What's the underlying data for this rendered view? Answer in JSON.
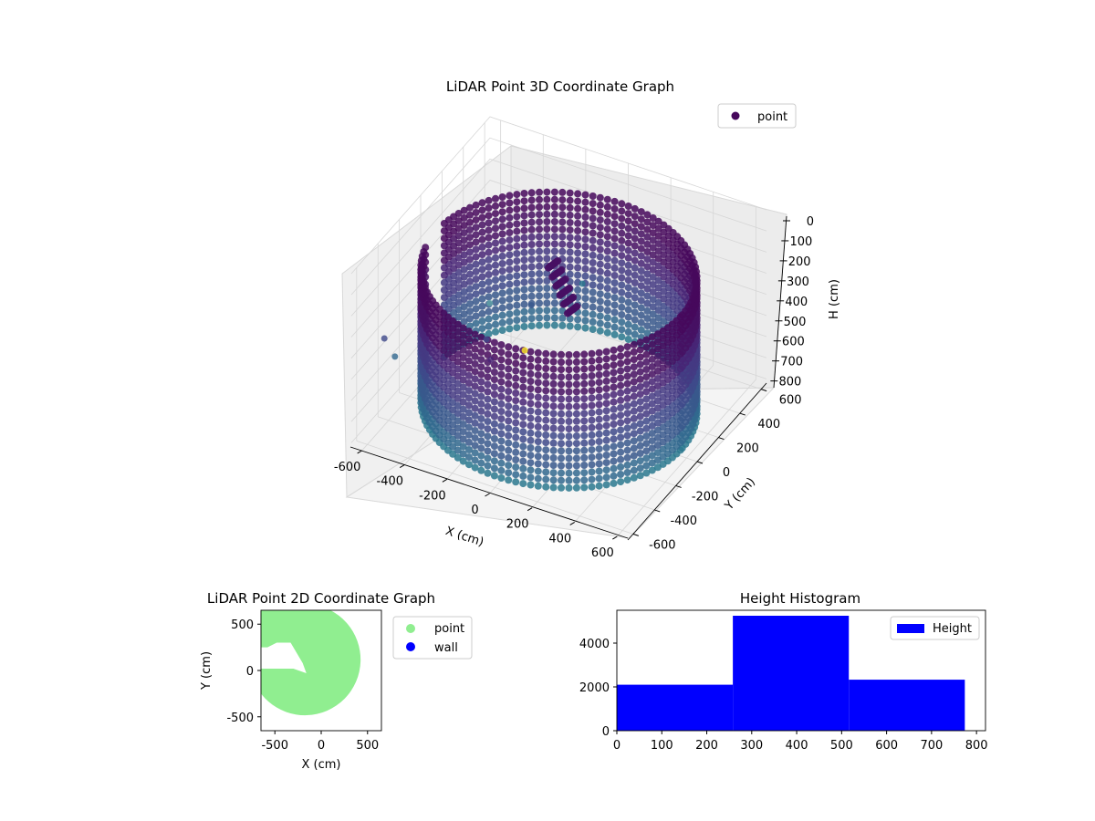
{
  "chart_data": [
    {
      "type": "scatter3d",
      "title": "LiDAR Point 3D Coordinate Graph",
      "xlabel": "X (cm)",
      "ylabel": "Y (cm)",
      "zlabel": "H (cm)",
      "xlim": [
        -650,
        650
      ],
      "ylim": [
        -650,
        650
      ],
      "zlim": [
        0,
        820
      ],
      "z_inverted": true,
      "x_ticks": [
        "-600",
        "-400",
        "-200",
        "0",
        "200",
        "400",
        "600"
      ],
      "y_ticks": [
        "-600",
        "-400",
        "-200",
        "0",
        "200",
        "400",
        "600"
      ],
      "z_ticks": [
        "0",
        "100",
        "200",
        "300",
        "400",
        "500",
        "600",
        "700",
        "800"
      ],
      "legend": {
        "label": "point",
        "position": "upper-right"
      },
      "colormap": "viridis",
      "series": [
        {
          "name": "point",
          "shape": "cylinder-ring",
          "center": [
            0,
            0
          ],
          "radius": 580,
          "height_range": [
            150,
            780
          ],
          "gap": {
            "from_x": [
              -600,
              -90
            ],
            "y": [
              -110,
              60
            ]
          }
        }
      ],
      "colors": {
        "dark": "#46085c",
        "mid": "#3e4989",
        "light": "#5fa2a6",
        "yellow": "#fde725"
      }
    },
    {
      "type": "scatter",
      "title": "LiDAR Point 2D Coordinate Graph",
      "xlabel": "X (cm)",
      "ylabel": "Y (cm)",
      "xlim": [
        -650,
        650
      ],
      "ylim": [
        -650,
        650
      ],
      "x_ticks": [
        "-500",
        "0",
        "500"
      ],
      "y_ticks": [
        "-500",
        "0",
        "500"
      ],
      "legend": {
        "position": "outside-upper-right",
        "entries": [
          {
            "label": "point",
            "color": "#90ee90"
          },
          {
            "label": "wall",
            "color": "#0000ff"
          }
        ]
      },
      "colors": {
        "point": "#90ee90",
        "wall": "#0000ff"
      }
    },
    {
      "type": "bar",
      "title": "Height Histogram",
      "xlim": [
        0,
        820
      ],
      "ylim": [
        0,
        5500
      ],
      "x_ticks": [
        "0",
        "100",
        "200",
        "300",
        "400",
        "500",
        "600",
        "700",
        "800"
      ],
      "y_ticks": [
        "0",
        "2000",
        "4000"
      ],
      "legend": {
        "label": "Height",
        "position": "upper-right"
      },
      "bins": [
        {
          "x0": 0,
          "x1": 258,
          "count": 2100
        },
        {
          "x0": 258,
          "x1": 516,
          "count": 5250
        },
        {
          "x0": 516,
          "x1": 774,
          "count": 2330
        }
      ],
      "colors": {
        "bar": "#0000ff"
      }
    }
  ]
}
